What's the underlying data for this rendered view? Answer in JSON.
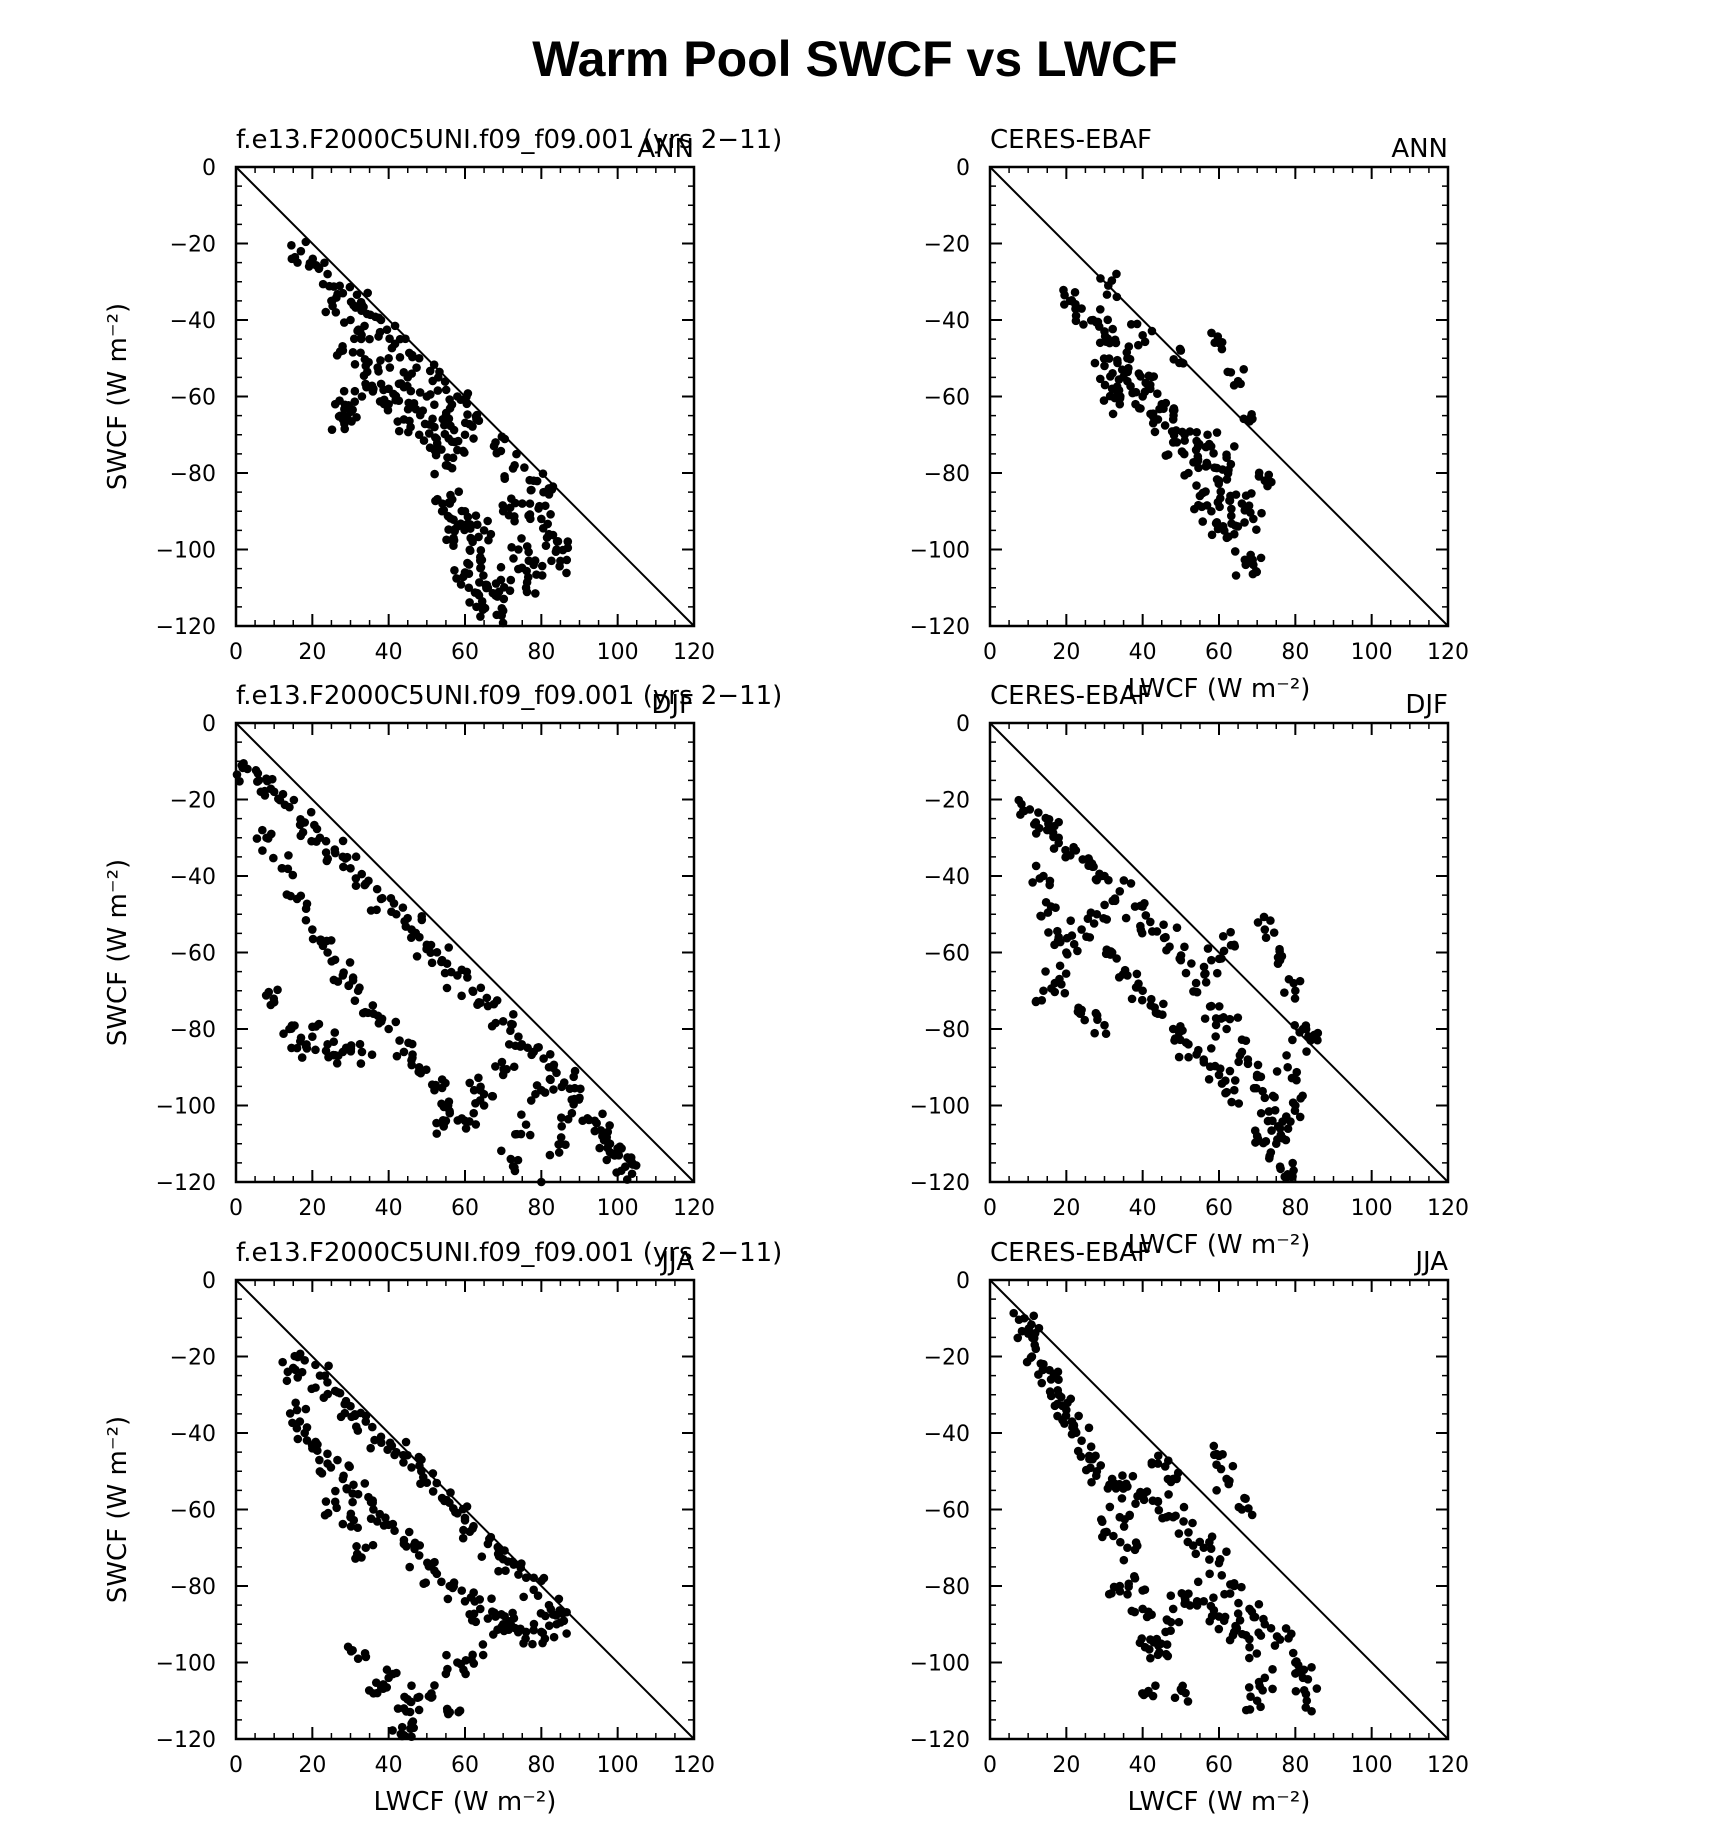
{
  "figure": {
    "title": "Warm Pool SWCF vs LWCF"
  },
  "chart_data": [
    {
      "type": "scatter",
      "left_title": "f.e13.F2000C5UNI.f09_f09.001 (yrs 2-11)",
      "right_title": "ANN",
      "xlabel": "",
      "ylabel": "SWCF (W m⁻²)",
      "xlim": [
        0,
        120
      ],
      "ylim": [
        -120,
        0
      ],
      "xticks": [
        0,
        20,
        40,
        60,
        80,
        100,
        120
      ],
      "yticks": [
        0,
        -20,
        -40,
        -60,
        -80,
        -100,
        -120
      ],
      "grid": false,
      "reference_line": {
        "x": [
          0,
          120
        ],
        "y": [
          0,
          -120
        ]
      },
      "seed": 11,
      "points": [
        [
          17,
          -22
        ],
        [
          20,
          -25
        ],
        [
          24,
          -28
        ],
        [
          28,
          -33
        ],
        [
          33,
          -36
        ],
        [
          38,
          -40
        ],
        [
          43,
          -45
        ],
        [
          48,
          -50
        ],
        [
          53,
          -55
        ],
        [
          58,
          -60
        ],
        [
          63,
          -66
        ],
        [
          68,
          -72
        ],
        [
          73,
          -78
        ],
        [
          78,
          -82
        ],
        [
          82,
          -85
        ],
        [
          25,
          -35
        ],
        [
          30,
          -40
        ],
        [
          35,
          -45
        ],
        [
          40,
          -50
        ],
        [
          45,
          -55
        ],
        [
          50,
          -60
        ],
        [
          55,
          -65
        ],
        [
          60,
          -70
        ],
        [
          28,
          -48
        ],
        [
          34,
          -52
        ],
        [
          40,
          -58
        ],
        [
          46,
          -62
        ],
        [
          52,
          -68
        ],
        [
          58,
          -74
        ],
        [
          26,
          -62
        ],
        [
          28,
          -66
        ],
        [
          30,
          -64
        ],
        [
          33,
          -60
        ],
        [
          36,
          -58
        ],
        [
          40,
          -62
        ],
        [
          44,
          -66
        ],
        [
          48,
          -70
        ],
        [
          52,
          -74
        ],
        [
          55,
          -78
        ],
        [
          56,
          -88
        ],
        [
          58,
          -94
        ],
        [
          60,
          -90
        ],
        [
          62,
          -98
        ],
        [
          64,
          -102
        ],
        [
          60,
          -106
        ],
        [
          61,
          -110
        ],
        [
          63,
          -115
        ],
        [
          66,
          -110
        ],
        [
          68,
          -112
        ],
        [
          70,
          -116
        ],
        [
          72,
          -108
        ],
        [
          74,
          -100
        ],
        [
          78,
          -104
        ],
        [
          80,
          -92
        ],
        [
          82,
          -96
        ],
        [
          84,
          -100
        ],
        [
          85,
          -103
        ],
        [
          76,
          -110
        ],
        [
          54,
          -90
        ],
        [
          57,
          -97
        ],
        [
          65,
          -95
        ],
        [
          70,
          -90
        ],
        [
          75,
          -88
        ]
      ]
    },
    {
      "type": "scatter",
      "left_title": "CERES-EBAF",
      "right_title": "ANN",
      "xlabel": "LWCF (W m⁻²)",
      "ylabel": "",
      "xlim": [
        0,
        120
      ],
      "ylim": [
        -120,
        0
      ],
      "xticks": [
        0,
        20,
        40,
        60,
        80,
        100,
        120
      ],
      "yticks": [
        0,
        -20,
        -40,
        -60,
        -80,
        -100,
        -120
      ],
      "grid": false,
      "reference_line": {
        "x": [
          0,
          120
        ],
        "y": [
          0,
          -120
        ]
      },
      "seed": 23,
      "points": [
        [
          21,
          -35
        ],
        [
          24,
          -37
        ],
        [
          27,
          -40
        ],
        [
          30,
          -43
        ],
        [
          33,
          -46
        ],
        [
          36,
          -50
        ],
        [
          39,
          -54
        ],
        [
          42,
          -58
        ],
        [
          45,
          -62
        ],
        [
          48,
          -66
        ],
        [
          51,
          -70
        ],
        [
          54,
          -74
        ],
        [
          57,
          -78
        ],
        [
          60,
          -82
        ],
        [
          63,
          -86
        ],
        [
          66,
          -88
        ],
        [
          69,
          -92
        ],
        [
          30,
          -52
        ],
        [
          32,
          -58
        ],
        [
          34,
          -62
        ],
        [
          36,
          -56
        ],
        [
          40,
          -60
        ],
        [
          44,
          -66
        ],
        [
          48,
          -72
        ],
        [
          52,
          -80
        ],
        [
          55,
          -86
        ],
        [
          58,
          -90
        ],
        [
          61,
          -94
        ],
        [
          64,
          -96
        ],
        [
          67,
          -104
        ],
        [
          69,
          -104
        ],
        [
          31,
          -31
        ],
        [
          40,
          -44
        ],
        [
          50,
          -48
        ],
        [
          60,
          -46
        ],
        [
          65,
          -56
        ],
        [
          68,
          -66
        ],
        [
          72,
          -82
        ],
        [
          62,
          -76
        ],
        [
          57,
          -70
        ]
      ]
    },
    {
      "type": "scatter",
      "left_title": "f.e13.F2000C5UNI.f09_f09.001 (yrs 2-11)",
      "right_title": "DJF",
      "xlabel": "",
      "ylabel": "SWCF (W m⁻²)",
      "xlim": [
        0,
        120
      ],
      "ylim": [
        -120,
        0
      ],
      "xticks": [
        0,
        20,
        40,
        60,
        80,
        100,
        120
      ],
      "yticks": [
        0,
        -20,
        -40,
        -60,
        -80,
        -100,
        -120
      ],
      "grid": false,
      "reference_line": {
        "x": [
          0,
          120
        ],
        "y": [
          0,
          -120
        ]
      },
      "seed": 37,
      "points": [
        [
          3,
          -12
        ],
        [
          6,
          -15
        ],
        [
          10,
          -18
        ],
        [
          14,
          -22
        ],
        [
          18,
          -26
        ],
        [
          22,
          -30
        ],
        [
          26,
          -34
        ],
        [
          30,
          -38
        ],
        [
          34,
          -42
        ],
        [
          38,
          -46
        ],
        [
          42,
          -50
        ],
        [
          46,
          -54
        ],
        [
          50,
          -58
        ],
        [
          54,
          -62
        ],
        [
          58,
          -66
        ],
        [
          62,
          -70
        ],
        [
          66,
          -74
        ],
        [
          70,
          -78
        ],
        [
          74,
          -82
        ],
        [
          78,
          -86
        ],
        [
          82,
          -90
        ],
        [
          86,
          -94
        ],
        [
          90,
          -98
        ],
        [
          94,
          -104
        ],
        [
          98,
          -110
        ],
        [
          102,
          -116
        ],
        [
          8,
          -30
        ],
        [
          12,
          -38
        ],
        [
          16,
          -46
        ],
        [
          20,
          -54
        ],
        [
          24,
          -60
        ],
        [
          28,
          -66
        ],
        [
          32,
          -70
        ],
        [
          36,
          -76
        ],
        [
          40,
          -80
        ],
        [
          44,
          -86
        ],
        [
          48,
          -90
        ],
        [
          52,
          -96
        ],
        [
          56,
          -102
        ],
        [
          60,
          -104
        ],
        [
          10,
          -73
        ],
        [
          14,
          -80
        ],
        [
          16,
          -85
        ],
        [
          20,
          -82
        ],
        [
          24,
          -84
        ],
        [
          28,
          -86
        ],
        [
          33,
          -86
        ],
        [
          55,
          -104
        ],
        [
          65,
          -100
        ],
        [
          72,
          -114
        ],
        [
          80,
          -120
        ],
        [
          85,
          -110
        ],
        [
          76,
          -105
        ],
        [
          64,
          -96
        ],
        [
          70,
          -92
        ],
        [
          80,
          -96
        ],
        [
          88,
          -102
        ],
        [
          96,
          -108
        ],
        [
          100,
          -112
        ],
        [
          103,
          -114
        ]
      ]
    },
    {
      "type": "scatter",
      "left_title": "CERES-EBAF",
      "right_title": "DJF",
      "xlabel": "LWCF (W m⁻²)",
      "ylabel": "",
      "xlim": [
        0,
        120
      ],
      "ylim": [
        -120,
        0
      ],
      "xticks": [
        0,
        20,
        40,
        60,
        80,
        100,
        120
      ],
      "yticks": [
        0,
        -20,
        -40,
        -60,
        -80,
        -100,
        -120
      ],
      "grid": false,
      "reference_line": {
        "x": [
          0,
          120
        ],
        "y": [
          0,
          -120
        ]
      },
      "seed": 51,
      "points": [
        [
          9,
          -23
        ],
        [
          12,
          -26
        ],
        [
          15,
          -28
        ],
        [
          18,
          -30
        ],
        [
          22,
          -33
        ],
        [
          26,
          -36
        ],
        [
          30,
          -40
        ],
        [
          34,
          -44
        ],
        [
          38,
          -48
        ],
        [
          42,
          -52
        ],
        [
          46,
          -56
        ],
        [
          50,
          -62
        ],
        [
          54,
          -68
        ],
        [
          58,
          -74
        ],
        [
          62,
          -80
        ],
        [
          66,
          -86
        ],
        [
          70,
          -92
        ],
        [
          72,
          -98
        ],
        [
          74,
          -104
        ],
        [
          75,
          -110
        ],
        [
          76,
          -116
        ],
        [
          78,
          -118
        ],
        [
          14,
          -40
        ],
        [
          16,
          -48
        ],
        [
          18,
          -56
        ],
        [
          20,
          -60
        ],
        [
          24,
          -54
        ],
        [
          28,
          -50
        ],
        [
          32,
          -60
        ],
        [
          36,
          -66
        ],
        [
          40,
          -70
        ],
        [
          44,
          -76
        ],
        [
          48,
          -80
        ],
        [
          52,
          -84
        ],
        [
          56,
          -88
        ],
        [
          60,
          -92
        ],
        [
          64,
          -96
        ],
        [
          14,
          -70
        ],
        [
          17,
          -68
        ],
        [
          24,
          -75
        ],
        [
          30,
          -79
        ],
        [
          58,
          -62
        ],
        [
          64,
          -58
        ],
        [
          72,
          -54
        ],
        [
          76,
          -62
        ],
        [
          80,
          -70
        ],
        [
          82,
          -80
        ],
        [
          84,
          -83
        ],
        [
          78,
          -90
        ],
        [
          80,
          -100
        ],
        [
          76,
          -106
        ],
        [
          70,
          -108
        ]
      ]
    },
    {
      "type": "scatter",
      "left_title": "f.e13.F2000C5UNI.f09_f09.001 (yrs 2-11)",
      "right_title": "JJA",
      "xlabel": "LWCF (W m⁻²)",
      "ylabel": "SWCF (W m⁻²)",
      "xlim": [
        0,
        120
      ],
      "ylim": [
        -120,
        0
      ],
      "xticks": [
        0,
        20,
        40,
        60,
        80,
        100,
        120
      ],
      "yticks": [
        0,
        -20,
        -40,
        -60,
        -80,
        -100,
        -120
      ],
      "grid": false,
      "reference_line": {
        "x": [
          0,
          120
        ],
        "y": [
          0,
          -120
        ]
      },
      "seed": 67,
      "points": [
        [
          15,
          -23
        ],
        [
          18,
          -21
        ],
        [
          22,
          -25
        ],
        [
          26,
          -29
        ],
        [
          30,
          -33
        ],
        [
          34,
          -37
        ],
        [
          38,
          -41
        ],
        [
          42,
          -45
        ],
        [
          46,
          -49
        ],
        [
          50,
          -53
        ],
        [
          54,
          -57
        ],
        [
          58,
          -61
        ],
        [
          62,
          -65
        ],
        [
          66,
          -69
        ],
        [
          70,
          -73
        ],
        [
          74,
          -77
        ],
        [
          78,
          -81
        ],
        [
          82,
          -85
        ],
        [
          85,
          -87
        ],
        [
          16,
          -34
        ],
        [
          18,
          -40
        ],
        [
          20,
          -44
        ],
        [
          24,
          -48
        ],
        [
          28,
          -52
        ],
        [
          32,
          -56
        ],
        [
          36,
          -60
        ],
        [
          40,
          -64
        ],
        [
          44,
          -68
        ],
        [
          48,
          -72
        ],
        [
          52,
          -76
        ],
        [
          56,
          -80
        ],
        [
          60,
          -84
        ],
        [
          64,
          -86
        ],
        [
          68,
          -88
        ],
        [
          72,
          -90
        ],
        [
          76,
          -92
        ],
        [
          80,
          -92
        ],
        [
          84,
          -90
        ],
        [
          26,
          -58
        ],
        [
          30,
          -62
        ],
        [
          34,
          -70
        ],
        [
          32,
          -99
        ],
        [
          37,
          -108
        ],
        [
          40,
          -104
        ],
        [
          44,
          -112
        ],
        [
          46,
          -116
        ],
        [
          48,
          -109
        ],
        [
          52,
          -106
        ],
        [
          56,
          -113
        ],
        [
          58,
          -100
        ],
        [
          62,
          -98
        ],
        [
          70,
          -90
        ],
        [
          44,
          -119
        ]
      ]
    },
    {
      "type": "scatter",
      "left_title": "CERES-EBAF",
      "right_title": "JJA",
      "xlabel": "LWCF (W m⁻²)",
      "ylabel": "",
      "xlim": [
        0,
        120
      ],
      "ylim": [
        -120,
        0
      ],
      "xticks": [
        0,
        20,
        40,
        60,
        80,
        100,
        120
      ],
      "yticks": [
        0,
        -20,
        -40,
        -60,
        -80,
        -100,
        -120
      ],
      "grid": false,
      "reference_line": {
        "x": [
          0,
          120
        ],
        "y": [
          0,
          -120
        ]
      },
      "seed": 79,
      "points": [
        [
          9,
          -10
        ],
        [
          10,
          -14
        ],
        [
          12,
          -18
        ],
        [
          14,
          -22
        ],
        [
          16,
          -26
        ],
        [
          18,
          -30
        ],
        [
          20,
          -34
        ],
        [
          22,
          -38
        ],
        [
          24,
          -42
        ],
        [
          26,
          -46
        ],
        [
          28,
          -50
        ],
        [
          32,
          -52
        ],
        [
          36,
          -54
        ],
        [
          40,
          -56
        ],
        [
          44,
          -58
        ],
        [
          48,
          -62
        ],
        [
          52,
          -66
        ],
        [
          56,
          -70
        ],
        [
          60,
          -74
        ],
        [
          64,
          -80
        ],
        [
          68,
          -86
        ],
        [
          72,
          -90
        ],
        [
          76,
          -94
        ],
        [
          80,
          -100
        ],
        [
          82,
          -104
        ],
        [
          83,
          -110
        ],
        [
          34,
          -62
        ],
        [
          36,
          -70
        ],
        [
          38,
          -78
        ],
        [
          40,
          -86
        ],
        [
          42,
          -94
        ],
        [
          44,
          -98
        ],
        [
          46,
          -92
        ],
        [
          48,
          -86
        ],
        [
          52,
          -82
        ],
        [
          56,
          -84
        ],
        [
          60,
          -88
        ],
        [
          64,
          -92
        ],
        [
          68,
          -96
        ],
        [
          70,
          -110
        ],
        [
          72,
          -104
        ],
        [
          41,
          -108
        ],
        [
          50,
          -107
        ],
        [
          60,
          -46
        ],
        [
          66,
          -60
        ],
        [
          62,
          -52
        ],
        [
          44,
          -48
        ],
        [
          48,
          -52
        ],
        [
          30,
          -66
        ],
        [
          34,
          -80
        ]
      ]
    }
  ]
}
